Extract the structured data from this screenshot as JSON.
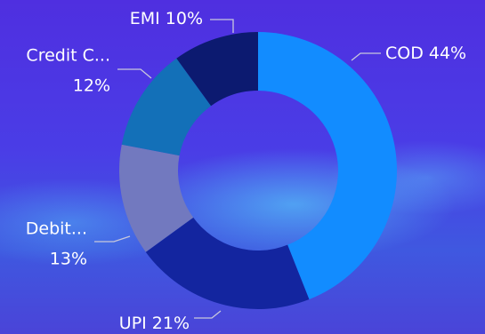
{
  "chart_data": {
    "type": "donut",
    "categories": [
      "COD",
      "UPI",
      "Debit...",
      "Credit C...",
      "EMI"
    ],
    "values": [
      44,
      21,
      13,
      12,
      10
    ],
    "value_labels": [
      "44%",
      "21%",
      "13%",
      "12%",
      "10%"
    ],
    "colors": [
      "#128cff",
      "#13259f",
      "#7279bf",
      "#1370b8",
      "#0c1a70"
    ]
  }
}
